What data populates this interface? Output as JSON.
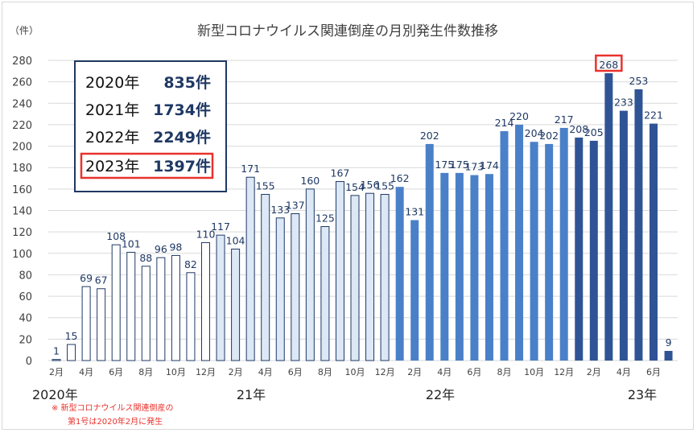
{
  "chart_data": {
    "type": "bar",
    "title": "新型コロナウイルス関連倒産の月別発生件数推移",
    "ylabel": "（件）",
    "ylim": [
      0,
      280
    ],
    "yticks": [
      0,
      20,
      40,
      60,
      80,
      100,
      120,
      140,
      160,
      180,
      200,
      220,
      240,
      260,
      280
    ],
    "grid": true,
    "categories": [
      "2020-02",
      "2020-03",
      "2020-04",
      "2020-05",
      "2020-06",
      "2020-07",
      "2020-08",
      "2020-09",
      "2020-10",
      "2020-11",
      "2020-12",
      "2021-01",
      "2021-02",
      "2021-03",
      "2021-04",
      "2021-05",
      "2021-06",
      "2021-07",
      "2021-08",
      "2021-09",
      "2021-10",
      "2021-11",
      "2021-12",
      "2022-01",
      "2022-02",
      "2022-03",
      "2022-04",
      "2022-05",
      "2022-06",
      "2022-07",
      "2022-08",
      "2022-09",
      "2022-10",
      "2022-11",
      "2022-12",
      "2023-01",
      "2023-02",
      "2023-03",
      "2023-04",
      "2023-05",
      "2023-06",
      "2023-07"
    ],
    "values": [
      1,
      15,
      69,
      67,
      108,
      101,
      88,
      96,
      98,
      82,
      110,
      117,
      104,
      171,
      155,
      133,
      137,
      160,
      125,
      167,
      154,
      156,
      155,
      162,
      131,
      202,
      175,
      175,
      173,
      174,
      214,
      220,
      204,
      202,
      217,
      208,
      205,
      268,
      233,
      253,
      221,
      9
    ],
    "year_of_bar": [
      "2020",
      "2020",
      "2020",
      "2020",
      "2020",
      "2020",
      "2020",
      "2020",
      "2020",
      "2020",
      "2020",
      "2021",
      "2021",
      "2021",
      "2021",
      "2021",
      "2021",
      "2021",
      "2021",
      "2021",
      "2021",
      "2021",
      "2021",
      "2022",
      "2022",
      "2022",
      "2022",
      "2022",
      "2022",
      "2022",
      "2022",
      "2022",
      "2022",
      "2022",
      "2022",
      "2023",
      "2023",
      "2023",
      "2023",
      "2023",
      "2023",
      "2023"
    ],
    "month_labels": [
      "2月",
      "4月",
      "6月",
      "8月",
      "10月",
      "12月",
      "2月",
      "4月",
      "6月",
      "8月",
      "10月",
      "12月",
      "2月",
      "4月",
      "6月",
      "8月",
      "10月",
      "12月",
      "2月",
      "4月",
      "6月"
    ],
    "year_labels": [
      "2020年",
      "21年",
      "22年",
      "23年"
    ],
    "highlighted_value": "268",
    "annual_totals": [
      {
        "year": "2020年",
        "count": "835件",
        "highlighted": false
      },
      {
        "year": "2021年",
        "count": "1734件",
        "highlighted": false
      },
      {
        "year": "2022年",
        "count": "2249件",
        "highlighted": false
      },
      {
        "year": "2023年",
        "count": "1397件",
        "highlighted": true
      }
    ],
    "note_lines": [
      "※ 新型コロナウイルス関連倒産の",
      "第1号は2020年2月に発生"
    ]
  },
  "colors": {
    "2020": "#ffffff",
    "2021": "#dce8f5",
    "2022": "#4a80c8",
    "2023": "#2f5496",
    "bar_edge": "#1f3864",
    "highlight": "#e8322d",
    "grid": "#d9d9d9",
    "box_border": "#1f3864",
    "annotation": "#e8322d"
  }
}
